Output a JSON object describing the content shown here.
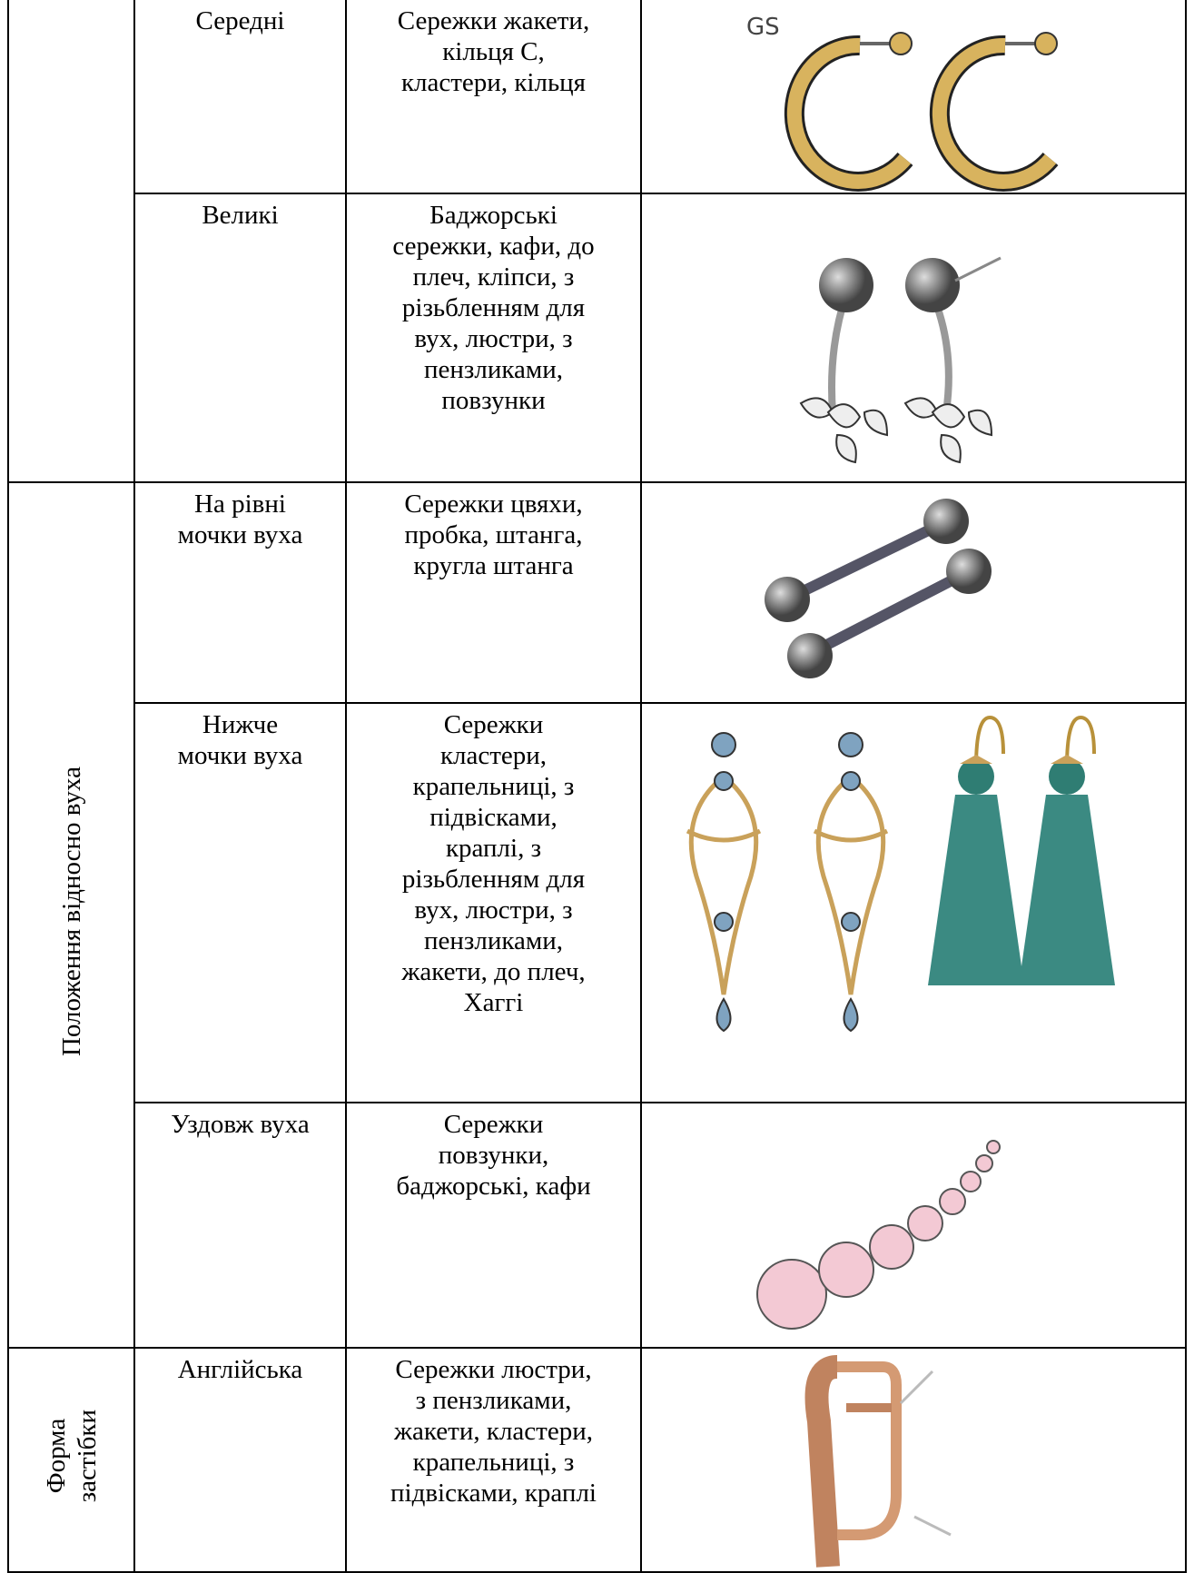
{
  "table": {
    "groups": [
      {
        "label": [
          "Положення відносно вуха"
        ]
      },
      {
        "label": [
          "Форма",
          "застібки"
        ]
      }
    ],
    "rows": [
      {
        "size": [
          "Середні"
        ],
        "types": [
          "Сережки жакети,",
          "кільця С,",
          "кластери, кільця"
        ],
        "image_text": "GS"
      },
      {
        "size": [
          "Великі"
        ],
        "types": [
          "Баджорські",
          "сережки, кафи, до",
          "плеч, кліпси, з",
          "різьбленням для",
          "вух,  люстри, з",
          "пензликами,",
          "повзунки"
        ]
      },
      {
        "size": [
          "На рівні",
          "мочки вуха"
        ],
        "types": [
          "Сережки цвяхи,",
          "пробка, штанга,",
          "кругла штанга"
        ]
      },
      {
        "size": [
          "Нижче",
          "мочки вуха"
        ],
        "types": [
          "Сережки",
          "кластери,",
          "крапельниці, з",
          "підвісками,",
          "краплі, з",
          "різьбленням для",
          "вух,  люстри, з",
          "пензликами,",
          "жакети, до плеч,",
          "Хаггі"
        ]
      },
      {
        "size": [
          "Уздовж вуха"
        ],
        "types": [
          "Сережки",
          "повзунки,",
          "баджорські, кафи"
        ]
      },
      {
        "size": [
          "Англійська"
        ],
        "types": [
          "Сережки люстри,",
          "з пензликами,",
          "жакети, кластери,",
          "крапельниці, з",
          "підвісками, краплі"
        ]
      }
    ]
  }
}
